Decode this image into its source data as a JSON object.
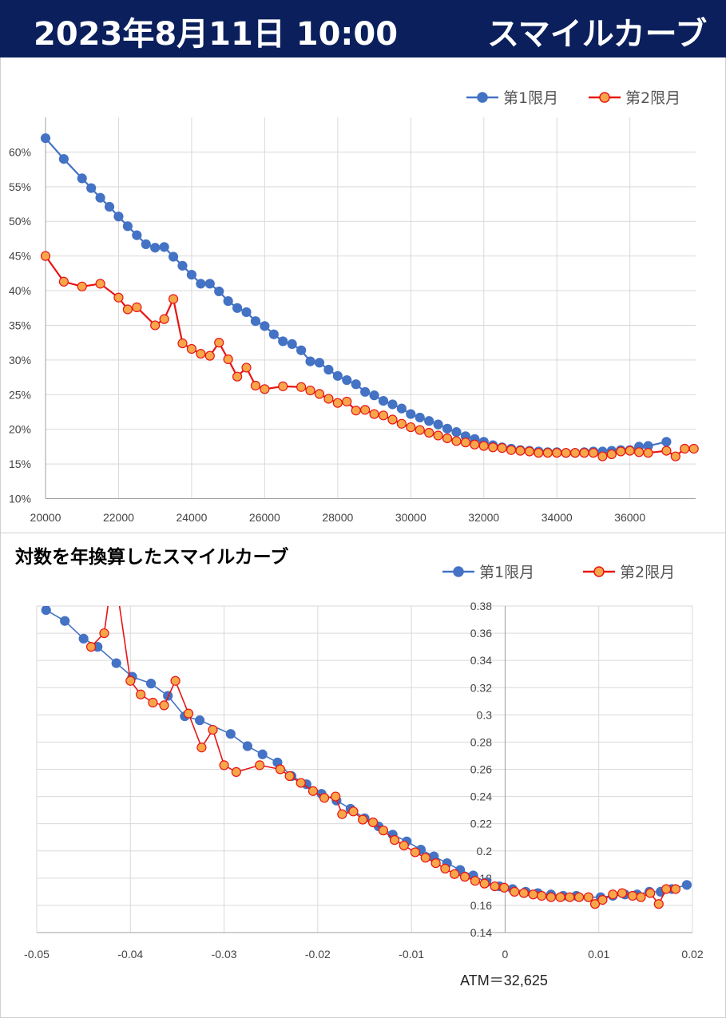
{
  "header": {
    "date_time": "2023年8月11日 10:00",
    "title": "スマイルカーブ"
  },
  "colors": {
    "header_bg": "#0a1f5c",
    "series1": "#4472c4",
    "series2_line": "#e81414",
    "series2_fill": "#f8a64a",
    "grid": "#d9d9d9"
  },
  "chart_data": [
    {
      "type": "line",
      "title": "",
      "xlabel": "",
      "ylabel": "",
      "xlim": [
        20000,
        37800
      ],
      "ylim": [
        0.1,
        0.65
      ],
      "x_ticks": [
        "20000",
        "22000",
        "24000",
        "26000",
        "28000",
        "30000",
        "32000",
        "34000",
        "36000"
      ],
      "y_ticks": [
        "10%",
        "15%",
        "20%",
        "25%",
        "30%",
        "35%",
        "40%",
        "45%",
        "50%",
        "55%",
        "60%"
      ],
      "grid": true,
      "legend": "top-right",
      "series": [
        {
          "name": "第1限月",
          "x": [
            20000,
            20500,
            21000,
            21250,
            21500,
            21750,
            22000,
            22250,
            22500,
            22750,
            23000,
            23250,
            23500,
            23750,
            24000,
            24250,
            24500,
            24750,
            25000,
            25250,
            25500,
            25750,
            26000,
            26250,
            26500,
            26750,
            27000,
            27250,
            27500,
            27750,
            28000,
            28250,
            28500,
            28750,
            29000,
            29250,
            29500,
            29750,
            30000,
            30250,
            30500,
            30750,
            31000,
            31250,
            31500,
            31750,
            32000,
            32250,
            32500,
            32750,
            33000,
            33250,
            33500,
            33750,
            34000,
            34250,
            34500,
            34750,
            35000,
            35250,
            35500,
            35750,
            36000,
            36250,
            36500,
            37000
          ],
          "values": [
            0.62,
            0.59,
            0.562,
            0.548,
            0.534,
            0.521,
            0.507,
            0.493,
            0.48,
            0.467,
            0.462,
            0.463,
            0.449,
            0.436,
            0.423,
            0.41,
            0.41,
            0.399,
            0.385,
            0.375,
            0.369,
            0.356,
            0.349,
            0.337,
            0.327,
            0.323,
            0.314,
            0.298,
            0.296,
            0.286,
            0.277,
            0.271,
            0.265,
            0.254,
            0.249,
            0.241,
            0.236,
            0.23,
            0.222,
            0.217,
            0.212,
            0.207,
            0.201,
            0.196,
            0.19,
            0.186,
            0.182,
            0.177,
            0.174,
            0.172,
            0.17,
            0.169,
            0.168,
            0.167,
            0.167,
            0.166,
            0.166,
            0.167,
            0.168,
            0.168,
            0.169,
            0.17,
            0.17,
            0.175,
            0.176,
            0.182
          ]
        },
        {
          "name": "第2限月",
          "x": [
            20000,
            20500,
            21000,
            21500,
            22000,
            22250,
            22500,
            23000,
            23250,
            23500,
            23750,
            24000,
            24250,
            24500,
            24750,
            25000,
            25250,
            25500,
            25750,
            26000,
            26500,
            27000,
            27250,
            27500,
            27750,
            28000,
            28250,
            28500,
            28750,
            29000,
            29250,
            29500,
            29750,
            30000,
            30250,
            30500,
            30750,
            31000,
            31250,
            31500,
            31750,
            32000,
            32250,
            32500,
            32750,
            33000,
            33250,
            33500,
            33750,
            34000,
            34250,
            34500,
            34750,
            35000,
            35250,
            35500,
            35750,
            36000,
            36250,
            36500,
            37000,
            37250,
            37500,
            37750
          ],
          "values": [
            0.45,
            0.413,
            0.406,
            0.41,
            0.39,
            0.373,
            0.376,
            0.35,
            0.359,
            0.388,
            0.324,
            0.316,
            0.309,
            0.306,
            0.325,
            0.301,
            0.276,
            0.289,
            0.263,
            0.258,
            0.262,
            0.261,
            0.256,
            0.251,
            0.244,
            0.238,
            0.24,
            0.227,
            0.228,
            0.222,
            0.22,
            0.214,
            0.208,
            0.203,
            0.199,
            0.195,
            0.191,
            0.187,
            0.183,
            0.181,
            0.178,
            0.176,
            0.174,
            0.173,
            0.17,
            0.169,
            0.168,
            0.166,
            0.166,
            0.166,
            0.166,
            0.166,
            0.166,
            0.166,
            0.161,
            0.164,
            0.168,
            0.169,
            0.167,
            0.166,
            0.169,
            0.161,
            0.172,
            0.172
          ]
        }
      ]
    },
    {
      "type": "line",
      "title": "対数を年換算したスマイルカーブ",
      "xlabel": "",
      "ylabel": "",
      "annotation": "ATM＝32,625",
      "xlim": [
        -0.05,
        0.02
      ],
      "ylim": [
        0.14,
        0.38
      ],
      "x_ticks": [
        "-0.05",
        "-0.04",
        "-0.03",
        "-0.02",
        "-0.01",
        "0",
        "0.01",
        "0.02"
      ],
      "y_ticks": [
        "0.14",
        "0.16",
        "0.18",
        "0.2",
        "0.22",
        "0.24",
        "0.26",
        "0.28",
        "0.3",
        "0.32",
        "0.34",
        "0.36",
        "0.38"
      ],
      "grid": true,
      "legend": "top-right",
      "series": [
        {
          "name": "第1限月",
          "x": [
            -0.049,
            -0.047,
            -0.045,
            -0.0435,
            -0.0415,
            -0.0398,
            -0.0378,
            -0.036,
            -0.0342,
            -0.0326,
            -0.0293,
            -0.0275,
            -0.0259,
            -0.0243,
            -0.0228,
            -0.0212,
            -0.0196,
            -0.018,
            -0.0165,
            -0.015,
            -0.0135,
            -0.012,
            -0.0105,
            -0.009,
            -0.0076,
            -0.0062,
            -0.0048,
            -0.0034,
            -0.002,
            -0.0006,
            0.0008,
            0.0022,
            0.0035,
            0.0049,
            0.0062,
            0.0076,
            0.0089,
            0.0102,
            0.0115,
            0.0128,
            0.0141,
            0.0154,
            0.0166,
            0.0178,
            0.0194
          ],
          "values": [
            0.377,
            0.369,
            0.356,
            0.35,
            0.338,
            0.328,
            0.323,
            0.314,
            0.299,
            0.296,
            0.286,
            0.277,
            0.271,
            0.265,
            0.255,
            0.249,
            0.242,
            0.237,
            0.231,
            0.224,
            0.218,
            0.212,
            0.207,
            0.201,
            0.196,
            0.191,
            0.186,
            0.182,
            0.177,
            0.174,
            0.172,
            0.17,
            0.169,
            0.168,
            0.167,
            0.167,
            0.166,
            0.166,
            0.167,
            0.168,
            0.168,
            0.17,
            0.17,
            0.172,
            0.175
          ]
        },
        {
          "name": "第2限月",
          "x": [
            -0.0442,
            -0.0428,
            -0.04,
            -0.0389,
            -0.0376,
            -0.0364,
            -0.0352,
            -0.0338,
            -0.0324,
            -0.0312,
            -0.03,
            -0.0287,
            -0.0262,
            -0.024,
            -0.023,
            -0.0218,
            -0.0205,
            -0.0193,
            -0.0181,
            -0.0174,
            -0.0162,
            -0.0152,
            -0.0141,
            -0.013,
            -0.0118,
            -0.0108,
            -0.0096,
            -0.0085,
            -0.0074,
            -0.0064,
            -0.0054,
            -0.0043,
            -0.0032,
            -0.0022,
            -0.0011,
            -0.0001,
            0.001,
            0.002,
            0.003,
            0.0039,
            0.0049,
            0.0059,
            0.0069,
            0.0079,
            0.0089,
            0.0096,
            0.0104,
            0.0115,
            0.0125,
            0.0136,
            0.0145,
            0.0155,
            0.0164,
            0.0172,
            0.0182
          ],
          "values": [
            0.35,
            0.36,
            0.325,
            0.315,
            0.309,
            0.307,
            0.325,
            0.301,
            0.276,
            0.289,
            0.263,
            0.258,
            0.263,
            0.26,
            0.255,
            0.25,
            0.244,
            0.239,
            0.24,
            0.227,
            0.229,
            0.223,
            0.221,
            0.215,
            0.208,
            0.204,
            0.199,
            0.195,
            0.191,
            0.187,
            0.183,
            0.181,
            0.178,
            0.176,
            0.174,
            0.173,
            0.17,
            0.169,
            0.168,
            0.167,
            0.166,
            0.166,
            0.166,
            0.166,
            0.166,
            0.161,
            0.164,
            0.168,
            0.169,
            0.167,
            0.166,
            0.169,
            0.161,
            0.172,
            0.172
          ]
        }
      ],
      "offscale_segment": {
        "series": "第2限月",
        "x": [
          -0.0428,
          -0.0418,
          -0.04
        ],
        "values": [
          0.36,
          0.41,
          0.325
        ]
      }
    }
  ]
}
